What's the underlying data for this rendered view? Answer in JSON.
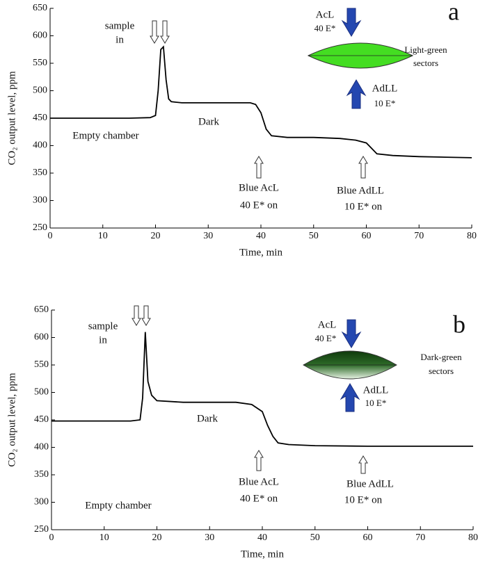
{
  "chart_data": [
    {
      "type": "line",
      "label": "a",
      "xlabel": "Time, min",
      "ylabel": "CO₂ output level, ppm",
      "x": [
        0,
        5,
        10,
        15,
        19,
        20,
        20.5,
        21,
        21.5,
        22,
        22.5,
        23,
        25,
        30,
        35,
        38,
        39,
        40,
        41,
        42,
        45,
        50,
        55,
        58,
        60,
        61,
        62,
        65,
        70,
        75,
        80
      ],
      "values": [
        450,
        450,
        450,
        450,
        451,
        455,
        500,
        575,
        580,
        520,
        485,
        480,
        478,
        478,
        478,
        478,
        475,
        460,
        430,
        418,
        415,
        415,
        413,
        410,
        405,
        395,
        385,
        382,
        380,
        379,
        378
      ],
      "color": "#000000",
      "xlim": [
        0,
        80
      ],
      "xticks": [
        0,
        10,
        20,
        30,
        40,
        50,
        60,
        70,
        80
      ],
      "ylim": [
        250,
        650
      ],
      "yticks": [
        250,
        300,
        350,
        400,
        450,
        500,
        550,
        600,
        650
      ],
      "lens_color": "#44dd22",
      "annotations": [
        "sample",
        "in",
        "Empty chamber",
        "Dark",
        "Blue AcL",
        "40 E* on",
        "Blue AdLL",
        "10 E* on",
        "AcL",
        "40 E*",
        "AdLL",
        "10 E*",
        "Light-green",
        "sectors"
      ]
    },
    {
      "type": "line",
      "label": "b",
      "xlabel": "Time, min",
      "ylabel": "CO₂ output level, ppm",
      "x": [
        0,
        5,
        10,
        15,
        16.8,
        17.3,
        17.8,
        18.3,
        19,
        20,
        25,
        30,
        35,
        38,
        40,
        41,
        42,
        43,
        45,
        50,
        60,
        70,
        80
      ],
      "values": [
        448,
        448,
        448,
        448,
        450,
        490,
        610,
        520,
        495,
        485,
        482,
        482,
        482,
        478,
        465,
        440,
        420,
        408,
        405,
        403,
        402,
        402,
        402
      ],
      "color": "#000000",
      "xlim": [
        0,
        80
      ],
      "xticks": [
        0,
        10,
        20,
        30,
        40,
        50,
        60,
        70,
        80
      ],
      "ylim": [
        250,
        650
      ],
      "yticks": [
        250,
        300,
        350,
        400,
        450,
        500,
        550,
        600,
        650
      ],
      "lens_color": "#1f5a1c",
      "annotations": [
        "sample",
        "in",
        "Empty chamber",
        "Dark",
        "Blue AcL",
        "40 E* on",
        "Blue AdLL",
        "10 E* on",
        "AcL",
        "40 E*",
        "AdLL",
        "10 E*",
        "Dark-green",
        "sectors"
      ]
    }
  ]
}
